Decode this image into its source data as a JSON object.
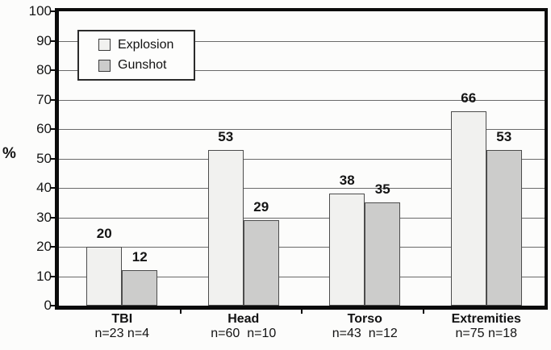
{
  "figure": {
    "background_color": "#fcfcfb",
    "frame_color": "#0b0b0b",
    "gridline_color": "#6a6a6a"
  },
  "legend": {
    "items": [
      {
        "label": "Explosion",
        "swatch_color": "#f1f1ef"
      },
      {
        "label": "Gunshot",
        "swatch_color": "#cccccb"
      }
    ]
  },
  "chart_data": {
    "type": "bar",
    "title": "",
    "xlabel": "",
    "ylabel": "%",
    "ylim": [
      0,
      100
    ],
    "yticks": [
      0,
      10,
      20,
      30,
      40,
      50,
      60,
      70,
      80,
      90,
      100
    ],
    "grid": true,
    "legend_position": "top-left-inside",
    "categories": [
      "TBI",
      "Head",
      "Torso",
      "Extremities"
    ],
    "category_sublabels": [
      "n=23 n=4",
      "n=60  n=10",
      "n=43  n=12",
      "n=75 n=18"
    ],
    "series": [
      {
        "name": "Explosion",
        "values": [
          20,
          53,
          38,
          66
        ],
        "color": "#f1f1ef"
      },
      {
        "name": "Gunshot",
        "values": [
          12,
          29,
          35,
          53
        ],
        "color": "#cccccb"
      }
    ]
  }
}
